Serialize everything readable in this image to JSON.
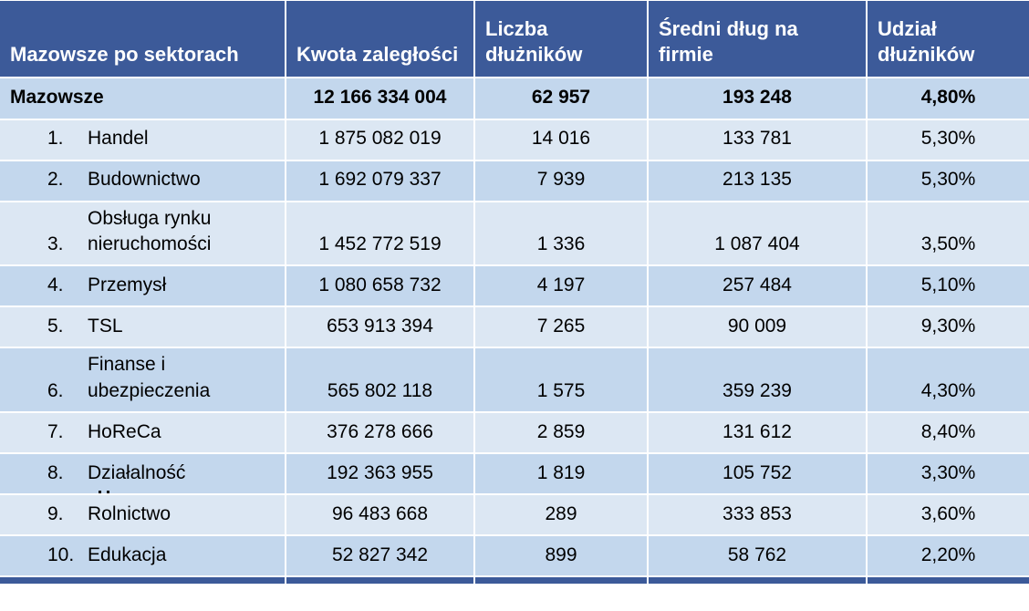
{
  "colors": {
    "header_bg": "#3c5a99",
    "band_dark": "#c3d7ed",
    "band_light": "#dce7f3",
    "separator": "#ffffff",
    "header_text": "#ffffff",
    "body_text": "#000000",
    "page_bg": "#ffffff"
  },
  "chart_data": {
    "type": "table",
    "title": "Mazowsze po sektorach",
    "layout_hints": {
      "header_row": "dark blue, white bold text, bottom-aligned",
      "banding": "summary row and even-numbered sector rows darker blue, odd rows lighter blue",
      "numeric_alignment": "center",
      "bottom_strip": "partial dark blue row cut off at bottom edge"
    },
    "columns": [
      "Mazowsze po sektorach",
      "Kwota zaległości",
      "Liczba dłużników",
      "Średni dług na firmie",
      "Udział dłużników"
    ],
    "summary_row": {
      "sector": "Mazowsze",
      "kwota": "12 166 334 004",
      "liczba": "62 957",
      "sredni": "193 248",
      "udzial": "4,80%"
    },
    "rows": [
      {
        "num": "1.",
        "sector": "Handel",
        "kwota": "1 875 082 019",
        "liczba": "14 016",
        "sredni": "133 781",
        "udzial": "5,30%"
      },
      {
        "num": "2.",
        "sector": "Budownictwo",
        "kwota": "1 692 079 337",
        "liczba": "7 939",
        "sredni": "213 135",
        "udzial": "5,30%"
      },
      {
        "num": "3.",
        "sector": "Obsługa rynku nieruchomości",
        "kwota": "1 452 772 519",
        "liczba": "1 336",
        "sredni": "1 087 404",
        "udzial": "3,50%"
      },
      {
        "num": "4.",
        "sector": "Przemysł",
        "kwota": "1 080 658 732",
        "liczba": "4 197",
        "sredni": "257 484",
        "udzial": "5,10%"
      },
      {
        "num": "5.",
        "sector": "TSL",
        "kwota": "653 913 394",
        "liczba": "7 265",
        "sredni": "90 009",
        "udzial": "9,30%"
      },
      {
        "num": "6.",
        "sector": "Finanse i ubezpieczenia",
        "kwota": "565 802 118",
        "liczba": "1 575",
        "sredni": "359 239",
        "udzial": "4,30%"
      },
      {
        "num": "7.",
        "sector": "HoReCa",
        "kwota": "376 278 666",
        "liczba": "2 859",
        "sredni": "131 612",
        "udzial": "8,40%"
      },
      {
        "num": "8.",
        "sector": "Działalność",
        "kwota": "192 363 955",
        "liczba": "1 819",
        "sredni": "105 752",
        "udzial": "3,30%",
        "second_line_clipped": true
      },
      {
        "num": "9.",
        "sector": "Rolnictwo",
        "kwota": "96 483 668",
        "liczba": "289",
        "sredni": "333 853",
        "udzial": "3,60%"
      },
      {
        "num": "10.",
        "sector": "Edukacja",
        "kwota": "52 827 342",
        "liczba": "899",
        "sredni": "58 762",
        "udzial": "2,20%"
      }
    ]
  }
}
